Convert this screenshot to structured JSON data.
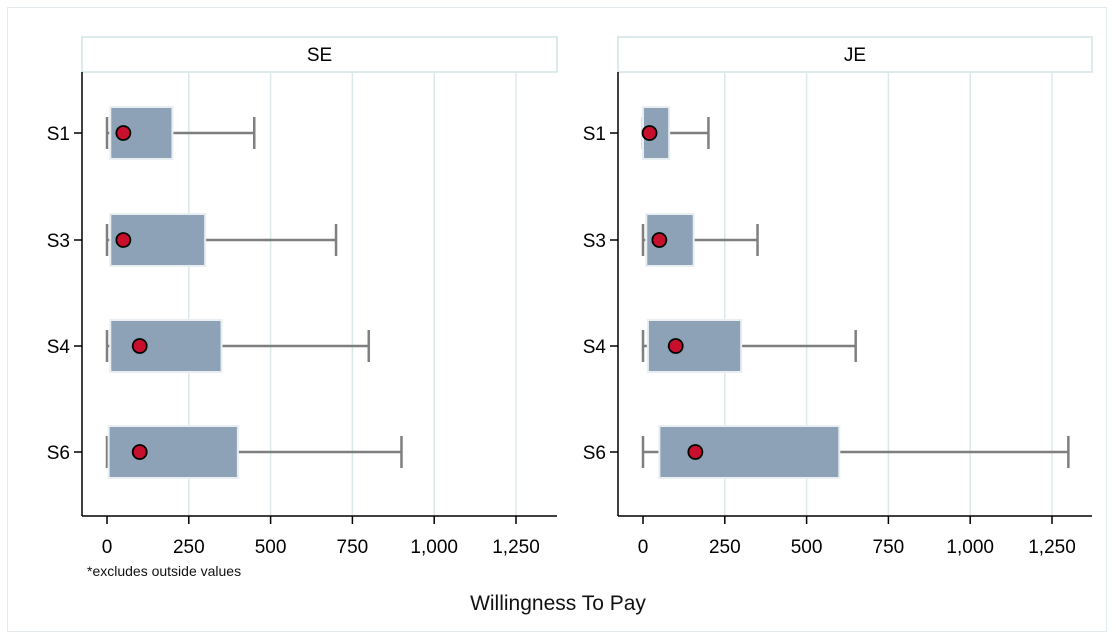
{
  "chart_data": {
    "type": "boxplot",
    "xlabel": "Willingness To Pay",
    "note": "*excludes outside values",
    "xlim": [
      -75,
      1350
    ],
    "xticks": [
      0,
      250,
      500,
      750,
      1000,
      1250
    ],
    "xtick_labels": [
      "0",
      "250",
      "500",
      "750",
      "1,000",
      "1,250"
    ],
    "categories": [
      "S1",
      "S3",
      "S4",
      "S6"
    ],
    "grid": true,
    "colors": {
      "box": "#8da2b6",
      "box_edge": "#e8eef2",
      "whisker": "#7f7f7f",
      "marker": "#c8102e",
      "grid": "#dde8ea"
    },
    "panels": [
      {
        "name": "SE",
        "boxes": [
          {
            "category": "S1",
            "whisker_low": 0,
            "q1": 10,
            "median": 200,
            "q3": 200,
            "whisker_high": 450,
            "marker": 50
          },
          {
            "category": "S3",
            "whisker_low": 0,
            "q1": 10,
            "median": 300,
            "q3": 300,
            "whisker_high": 700,
            "marker": 50
          },
          {
            "category": "S4",
            "whisker_low": 0,
            "q1": 10,
            "median": 350,
            "q3": 350,
            "whisker_high": 800,
            "marker": 100
          },
          {
            "category": "S6",
            "whisker_low": 0,
            "q1": 5,
            "median": 400,
            "q3": 400,
            "whisker_high": 900,
            "marker": 100
          }
        ]
      },
      {
        "name": "JE",
        "boxes": [
          {
            "category": "S1",
            "whisker_low": 0,
            "q1": 0,
            "median": 80,
            "q3": 80,
            "whisker_high": 200,
            "marker": 20
          },
          {
            "category": "S3",
            "whisker_low": 0,
            "q1": 10,
            "median": 155,
            "q3": 155,
            "whisker_high": 350,
            "marker": 50
          },
          {
            "category": "S4",
            "whisker_low": 0,
            "q1": 15,
            "median": 300,
            "q3": 300,
            "whisker_high": 650,
            "marker": 100
          },
          {
            "category": "S6",
            "whisker_low": 0,
            "q1": 50,
            "median": 600,
            "q3": 600,
            "whisker_high": 1300,
            "marker": 160
          }
        ]
      }
    ]
  }
}
